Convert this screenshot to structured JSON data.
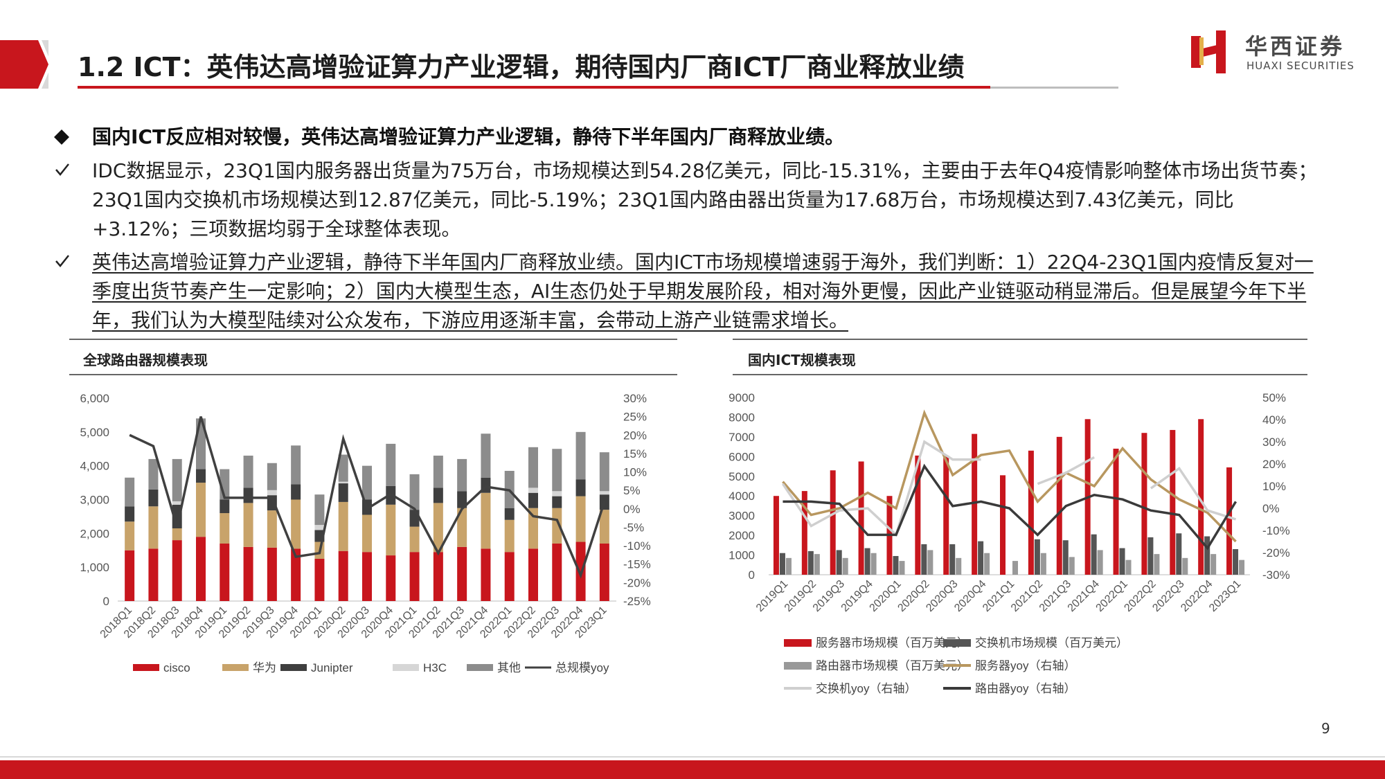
{
  "header": {
    "title": "1.2 ICT：英伟达高增验证算力产业逻辑，期待国内厂商ICT厂商业释放业绩",
    "logo_cn": "华西证券",
    "logo_en": "HUAXI SECURITIES",
    "accent_color": "#c8161d"
  },
  "body": {
    "bullet1_icon": "diamond-icon",
    "bullet1": "国内ICT反应相对较慢，英伟达高增验证算力产业逻辑，静待下半年国内厂商释放业绩。",
    "check_icon": "checkmark-icon",
    "bullet2": "IDC数据显示，23Q1国内服务器出货量为75万台，市场规模达到54.28亿美元，同比-15.31%，主要由于去年Q4疫情影响整体市场出货节奏；23Q1国内交换机市场规模达到12.87亿美元，同比-5.19%；23Q1国内路由器出货量为17.68万台，市场规模达到7.43亿美元，同比+3.12%；三项数据均弱于全球整体表现。",
    "bullet3": "英伟达高增验证算力产业逻辑，静待下半年国内厂商释放业绩。国内ICT市场规模增速弱于海外，我们判断：1）22Q4-23Q1国内疫情反复对一季度出货节奏产生一定影响；2）国内大模型生态，AI生态仍处于早期发展阶段，相对海外更慢，因此产业链驱动稍显滞后。但是展望今年下半年，我们认为大模型陆续对公众发布，下游应用逐渐丰富，会带动上游产业链需求增长。"
  },
  "page_number": "9",
  "chart_data": [
    {
      "type": "bar",
      "stacked": true,
      "title": "全球路由器规模表现",
      "categories": [
        "2018Q1",
        "2018Q2",
        "2018Q3",
        "2018Q4",
        "2019Q1",
        "2019Q2",
        "2019Q3",
        "2019Q4",
        "2020Q1",
        "2020Q2",
        "2020Q3",
        "2020Q4",
        "2021Q1",
        "2021Q2",
        "2021Q3",
        "2021Q4",
        "2022Q1",
        "2022Q2",
        "2022Q3",
        "2022Q4",
        "2023Q1"
      ],
      "ylim": [
        0,
        6000
      ],
      "yticks": [
        "0",
        "1,000",
        "2,000",
        "3,000",
        "4,000",
        "5,000",
        "6,000"
      ],
      "y2lim": [
        -25,
        30
      ],
      "y2ticks": [
        "-25%",
        "-20%",
        "-15%",
        "-10%",
        "-5%",
        "0%",
        "5%",
        "10%",
        "15%",
        "20%",
        "25%",
        "30%"
      ],
      "legend_position": "bottom",
      "series": [
        {
          "name": "cisco",
          "color": "#c8161d",
          "values": [
            1500,
            1550,
            1800,
            1900,
            1700,
            1600,
            1580,
            1550,
            1250,
            1480,
            1450,
            1350,
            1450,
            1450,
            1600,
            1550,
            1450,
            1550,
            1700,
            1750,
            1700
          ]
        },
        {
          "name": "华为",
          "color": "#c8a36a",
          "values": [
            850,
            1250,
            350,
            1600,
            900,
            1300,
            1100,
            1450,
            500,
            1450,
            1100,
            1500,
            750,
            1450,
            1150,
            1650,
            950,
            1200,
            1050,
            1350,
            1000
          ]
        },
        {
          "name": "Junipter",
          "color": "#3f3f3f",
          "values": [
            450,
            500,
            700,
            400,
            400,
            450,
            450,
            450,
            350,
            550,
            450,
            550,
            500,
            450,
            500,
            450,
            350,
            450,
            350,
            500,
            450
          ]
        },
        {
          "name": "H3C",
          "color": "#d6d6d6",
          "values": [
            0,
            0,
            100,
            0,
            0,
            0,
            150,
            0,
            150,
            50,
            0,
            0,
            0,
            0,
            0,
            0,
            0,
            150,
            150,
            0,
            100
          ]
        },
        {
          "name": "其他",
          "color": "#8c8c8c",
          "values": [
            850,
            900,
            1250,
            1500,
            900,
            950,
            800,
            1150,
            900,
            800,
            1000,
            1250,
            1050,
            950,
            950,
            1300,
            1100,
            1200,
            1250,
            1400,
            1150
          ]
        },
        {
          "name": "总规模yoy",
          "axis": "right",
          "type": "line",
          "color": "#404040",
          "values": [
            20,
            17,
            -5,
            25,
            3,
            3,
            3,
            -13,
            -12,
            19,
            0,
            4,
            0,
            -12,
            0,
            6,
            5,
            -2,
            -3,
            -18,
            2
          ]
        }
      ]
    },
    {
      "type": "bar",
      "title": "国内ICT规模表现",
      "categories": [
        "2019Q1",
        "2019Q2",
        "2019Q3",
        "2019Q4",
        "2020Q1",
        "2020Q2",
        "2020Q3",
        "2020Q4",
        "2021Q1",
        "2021Q2",
        "2021Q3",
        "2021Q4",
        "2022Q1",
        "2022Q2",
        "2022Q3",
        "2022Q4",
        "2023Q1"
      ],
      "ylim": [
        0,
        9000
      ],
      "yticks": [
        "0",
        "1000",
        "2000",
        "3000",
        "4000",
        "5000",
        "6000",
        "7000",
        "8000",
        "9000"
      ],
      "y2lim": [
        -30,
        50
      ],
      "y2ticks": [
        "-30%",
        "-20%",
        "-10%",
        "0%",
        "10%",
        "20%",
        "30%",
        "40%",
        "50%"
      ],
      "legend_position": "bottom",
      "series": [
        {
          "name": "服务器市场规模（百万美元）",
          "color": "#c8161d",
          "values": [
            4000,
            4250,
            5300,
            5750,
            4000,
            6050,
            6050,
            7150,
            5050,
            6300,
            7000,
            7900,
            6400,
            7200,
            7350,
            7900,
            5450
          ]
        },
        {
          "name": "交换机市场规模（百万美元）",
          "color": "#555555",
          "values": [
            1100,
            1200,
            1250,
            1350,
            950,
            1550,
            1550,
            1700,
            0,
            1800,
            1750,
            2050,
            1350,
            1900,
            2100,
            1950,
            1300
          ]
        },
        {
          "name": "路由器市场规模（百万美元）",
          "color": "#999999",
          "values": [
            850,
            1050,
            850,
            1100,
            700,
            1250,
            850,
            1100,
            700,
            1100,
            900,
            1250,
            750,
            1050,
            850,
            1050,
            750
          ]
        },
        {
          "name": "服务器yoy（右轴）",
          "axis": "right",
          "type": "line",
          "color": "#b8975f",
          "values": [
            12,
            -3,
            0,
            7,
            0,
            43,
            15,
            24,
            26,
            3,
            16,
            10,
            27,
            13,
            4,
            -2,
            -15
          ]
        },
        {
          "name": "交换机yoy（右轴）",
          "axis": "right",
          "type": "line",
          "color": "#cfcfcf",
          "values": [
            11,
            -8,
            -1,
            0,
            -12,
            30,
            22,
            22,
            null,
            11,
            16,
            23,
            null,
            9,
            18,
            -1,
            -5
          ]
        },
        {
          "name": "路由器yoy（右轴）",
          "axis": "right",
          "type": "line",
          "color": "#3a3a3a",
          "values": [
            3,
            3,
            2,
            -12,
            -12,
            19,
            1,
            3,
            0,
            -12,
            1,
            6,
            4,
            -1,
            -3,
            -18,
            3
          ]
        }
      ]
    }
  ]
}
